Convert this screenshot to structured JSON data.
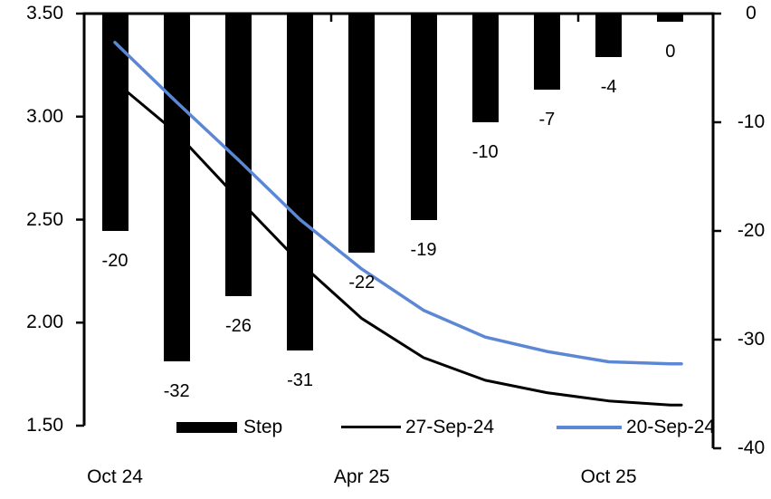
{
  "chart_data": {
    "type": "combo_bar_line",
    "background": "#FFFFFF",
    "n_categories": 10,
    "bar_series": {
      "name": "Step",
      "axis": "right",
      "color": "#000000",
      "values": [
        -20,
        -32,
        -26,
        -31,
        -22,
        -19,
        -10,
        -7,
        -4,
        0
      ],
      "data_labels": [
        "-20",
        "-32",
        "-26",
        "-31",
        "-22",
        "-19",
        "-10",
        "-7",
        "-4",
        "0"
      ]
    },
    "line_series": [
      {
        "name": "27-Sep-24",
        "axis": "left",
        "color": "#000000",
        "stroke": 3,
        "values": [
          3.17,
          2.92,
          2.6,
          2.29,
          2.02,
          1.83,
          1.72,
          1.66,
          1.62,
          1.6
        ]
      },
      {
        "name": "20-Sep-24",
        "axis": "left",
        "color": "#5B87D5",
        "stroke": 3.5,
        "values": [
          3.36,
          3.07,
          2.79,
          2.5,
          2.26,
          2.06,
          1.93,
          1.86,
          1.81,
          1.8
        ]
      }
    ],
    "left_axis": {
      "max": 3.5,
      "min": 1.5,
      "tick_values": [
        3.5,
        3.0,
        2.5,
        2.0,
        1.5
      ],
      "tick_labels": [
        "3.50",
        "3.00",
        "2.50",
        "2.00",
        "1.50"
      ]
    },
    "right_axis": {
      "max": 0,
      "min": -40,
      "tick_values": [
        0,
        -10,
        -20,
        -30,
        -40
      ],
      "tick_labels": [
        "0",
        "-10",
        "-20",
        "-30",
        "-40"
      ]
    },
    "x_axis": {
      "tick_labels": [
        "Oct 24",
        "Apr 25",
        "Oct 25"
      ],
      "label_category_index": [
        0,
        4,
        8
      ]
    },
    "legend": [
      {
        "label": "Step",
        "swatch": "bar",
        "color": "#000000"
      },
      {
        "label": "27-Sep-24",
        "swatch": "line",
        "color": "#000000"
      },
      {
        "label": "20-Sep-24",
        "swatch": "line",
        "color": "#5B87D5"
      }
    ]
  }
}
